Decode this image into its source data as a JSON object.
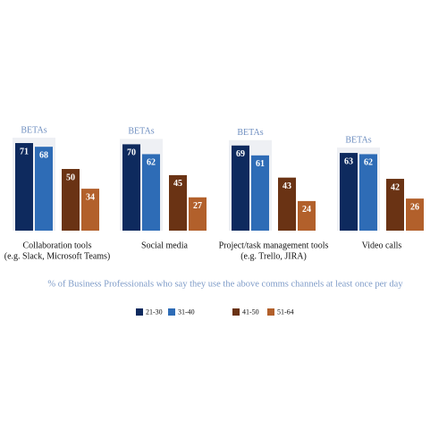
{
  "chart_data": {
    "type": "bar",
    "annotation": "BETAs",
    "caption": "% of Business Professionals who say they use the above comms channels at least once per day",
    "categories": [
      [
        "Collaboration tools",
        "(e.g. Slack, Microsoft Teams)"
      ],
      [
        "Social media"
      ],
      [
        "Project/task management tools",
        "(e.g. Trello, JIRA)"
      ],
      [
        "Video calls"
      ]
    ],
    "series": [
      {
        "name": "21-30",
        "color": "#0e2a5e",
        "values": [
          71,
          70,
          69,
          63
        ]
      },
      {
        "name": "31-40",
        "color": "#2e6cb6",
        "values": [
          68,
          62,
          61,
          62
        ]
      },
      {
        "name": "41-50",
        "color": "#6a3314",
        "values": [
          50,
          45,
          43,
          42
        ]
      },
      {
        "name": "51-64",
        "color": "#b2602b",
        "values": [
          34,
          27,
          24,
          26
        ]
      }
    ]
  }
}
